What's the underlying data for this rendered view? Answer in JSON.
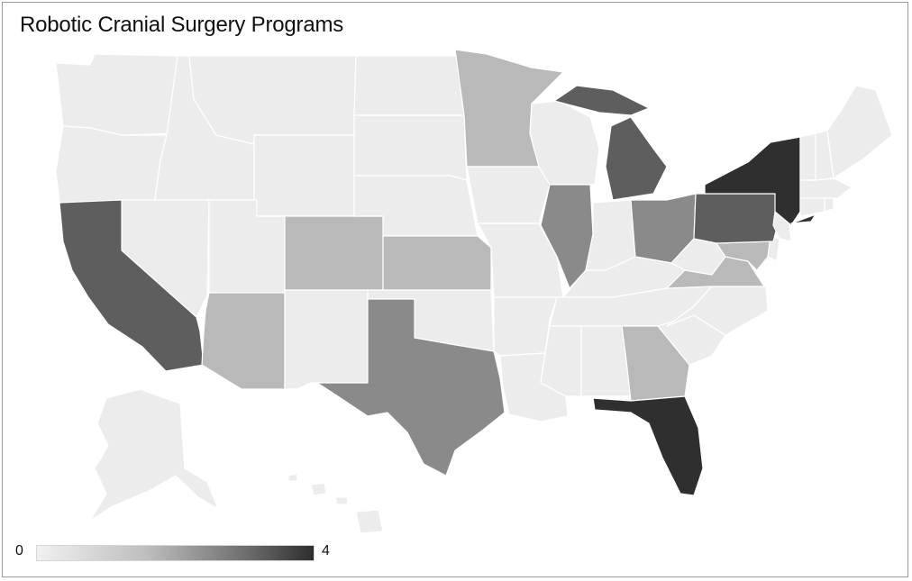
{
  "title": "Robotic Cranial Surgery Programs",
  "legend": {
    "min_label": "0",
    "max_label": "4",
    "min": 0,
    "max": 4
  },
  "colors": {
    "value_0": "#ececec",
    "value_1": "#b9b9b9",
    "value_2": "#8a8a8a",
    "value_3": "#5e5e5e",
    "value_4": "#2f2f2f",
    "border": "#ffffff",
    "background": "#ffffff"
  },
  "state_values": {
    "CA": 3,
    "TX": 2,
    "FL": 4,
    "NY": 4,
    "PA": 3,
    "MI": 3,
    "IL": 2,
    "OH": 2,
    "GA": 1,
    "VA": 1,
    "MD": 1,
    "AZ": 1,
    "CO": 1,
    "KS": 1,
    "MN": 1,
    "WA": 0,
    "OR": 0,
    "ID": 0,
    "MT": 0,
    "WY": 0,
    "NV": 0,
    "UT": 0,
    "NM": 0,
    "ND": 0,
    "SD": 0,
    "NE": 0,
    "OK": 0,
    "IA": 0,
    "MO": 0,
    "AR": 0,
    "LA": 0,
    "WI": 0,
    "IN": 0,
    "KY": 0,
    "TN": 0,
    "MS": 0,
    "AL": 0,
    "SC": 0,
    "NC": 0,
    "WV": 0,
    "ME": 0,
    "NH": 0,
    "VT": 0,
    "MA": 0,
    "RI": 0,
    "CT": 0,
    "NJ": 0,
    "DE": 0,
    "AK": 0,
    "HI": 0
  }
}
